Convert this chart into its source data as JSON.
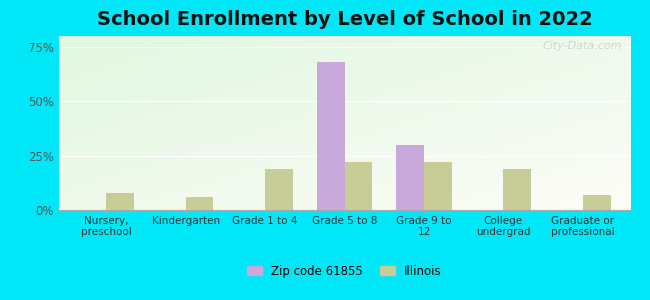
{
  "title": "School Enrollment by Level of School in 2022",
  "categories": [
    "Nursery,\npreschool",
    "Kindergarten",
    "Grade 1 to 4",
    "Grade 5 to 8",
    "Grade 9 to\n12",
    "College\nundergrad",
    "Graduate or\nprofessional"
  ],
  "zip_values": [
    0,
    0,
    0,
    68,
    30,
    0,
    0
  ],
  "il_values": [
    8,
    6,
    19,
    22,
    22,
    19,
    7
  ],
  "zip_color": "#c9a8dc",
  "il_color": "#c8cc96",
  "ylim": [
    0,
    80
  ],
  "yticks": [
    0,
    25,
    50,
    75
  ],
  "ytick_labels": [
    "0%",
    "25%",
    "50%",
    "75%"
  ],
  "legend_zip": "Zip code 61855",
  "legend_il": "Illinois",
  "bg_outer": "#00e8f8",
  "title_fontsize": 14,
  "watermark": "City-Data.com",
  "bar_width": 0.35
}
